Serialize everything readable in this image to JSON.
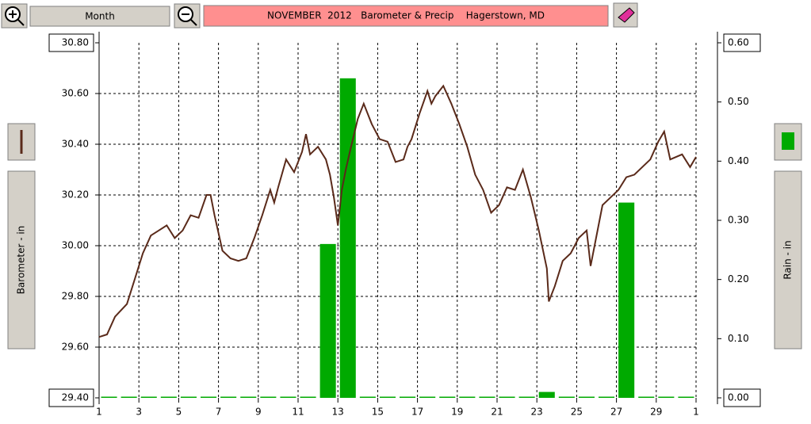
{
  "toolbar": {
    "period": "Month"
  },
  "chart_data": {
    "type": "line_bar",
    "title": "NOVEMBER  2012   Barometer & Precip    Hagerstown, MD",
    "ylabel": "Barometer - in",
    "y2label": "Rain - in",
    "xlim": [
      1,
      31
    ],
    "xticks": [
      1,
      3,
      5,
      7,
      9,
      11,
      13,
      15,
      17,
      19,
      21,
      23,
      25,
      27,
      29,
      {
        "value": 31,
        "label": "1"
      }
    ],
    "ylim": [
      29.4,
      30.8
    ],
    "yticks": [
      {
        "value": 29.4,
        "label": "29.40"
      },
      {
        "value": 29.6,
        "label": "29.60"
      },
      {
        "value": 29.8,
        "label": "29.80"
      },
      {
        "value": 30,
        "label": "30.00"
      },
      {
        "value": 30.2,
        "label": "30.20"
      },
      {
        "value": 30.4,
        "label": "30.40"
      },
      {
        "value": 30.6,
        "label": "30.60"
      },
      {
        "value": 30.8,
        "label": "30.80"
      }
    ],
    "y2lim": [
      0,
      0.6
    ],
    "y2ticks": [
      {
        "value": 0,
        "label": "0.00"
      },
      {
        "value": 0.1,
        "label": "0.10"
      },
      {
        "value": 0.2,
        "label": "0.20"
      },
      {
        "value": 0.3,
        "label": "0.30"
      },
      {
        "value": 0.4,
        "label": "0.40"
      },
      {
        "value": 0.5,
        "label": "0.50"
      },
      {
        "value": 0.6,
        "label": "0.60"
      }
    ],
    "grid": true,
    "series": [
      {
        "name": "Barometer - in",
        "type": "line",
        "color": "#5a2a1a",
        "x": [
          1.0,
          1.4,
          1.8,
          2.4,
          2.8,
          3.2,
          3.6,
          4.0,
          4.4,
          4.8,
          5.2,
          5.6,
          6.0,
          6.4,
          6.6,
          6.8,
          7.2,
          7.6,
          8.0,
          8.4,
          8.8,
          9.2,
          9.6,
          9.8,
          10.0,
          10.4,
          10.8,
          11.2,
          11.4,
          11.6,
          12.0,
          12.4,
          12.6,
          12.8,
          13.0,
          13.2,
          13.4,
          13.6,
          14.0,
          14.3,
          14.7,
          15.1,
          15.5,
          15.9,
          16.3,
          16.5,
          16.7,
          17.1,
          17.5,
          17.7,
          17.9,
          18.3,
          18.7,
          19.1,
          19.5,
          19.9,
          20.3,
          20.7,
          21.1,
          21.5,
          21.9,
          22.3,
          22.7,
          23.1,
          23.5,
          23.6,
          23.9,
          24.3,
          24.7,
          25.1,
          25.5,
          25.7,
          25.9,
          26.3,
          26.7,
          27.1,
          27.5,
          27.9,
          28.3,
          28.7,
          29.1,
          29.4,
          29.7,
          30.3,
          30.7,
          31.0
        ],
        "values": [
          29.64,
          29.65,
          29.72,
          29.77,
          29.87,
          29.97,
          30.04,
          30.06,
          30.08,
          30.03,
          30.06,
          30.12,
          30.11,
          30.2,
          30.2,
          30.12,
          29.98,
          29.95,
          29.94,
          29.95,
          30.03,
          30.12,
          30.22,
          30.17,
          30.23,
          30.34,
          30.29,
          30.37,
          30.44,
          30.36,
          30.39,
          30.34,
          30.28,
          30.19,
          30.08,
          30.22,
          30.3,
          30.37,
          30.5,
          30.56,
          30.48,
          30.42,
          30.41,
          30.33,
          30.34,
          30.39,
          30.42,
          30.52,
          30.61,
          30.56,
          30.59,
          30.63,
          30.56,
          30.48,
          30.39,
          30.28,
          30.22,
          30.13,
          30.16,
          30.23,
          30.22,
          30.3,
          30.19,
          30.06,
          29.91,
          29.78,
          29.84,
          29.94,
          29.97,
          30.03,
          30.06,
          29.92,
          30.0,
          30.16,
          30.19,
          30.22,
          30.27,
          30.28,
          30.31,
          30.34,
          30.41,
          30.45,
          30.34,
          30.36,
          30.31,
          30.35
        ]
      },
      {
        "name": "Rain - in",
        "type": "bar",
        "axis": "y2",
        "color": "#00aa00",
        "x": [
          1,
          2,
          3,
          4,
          5,
          6,
          7,
          8,
          9,
          10,
          11,
          12,
          13,
          14,
          15,
          16,
          17,
          18,
          19,
          20,
          21,
          22,
          23,
          24,
          25,
          26,
          27,
          28,
          29,
          30
        ],
        "values": [
          0,
          0,
          0,
          0,
          0,
          0,
          0,
          0,
          0,
          0,
          0,
          0.26,
          0.54,
          0,
          0,
          0,
          0,
          0,
          0,
          0,
          0,
          0,
          0.01,
          0,
          0,
          0,
          0.33,
          0,
          0,
          0
        ]
      }
    ]
  }
}
